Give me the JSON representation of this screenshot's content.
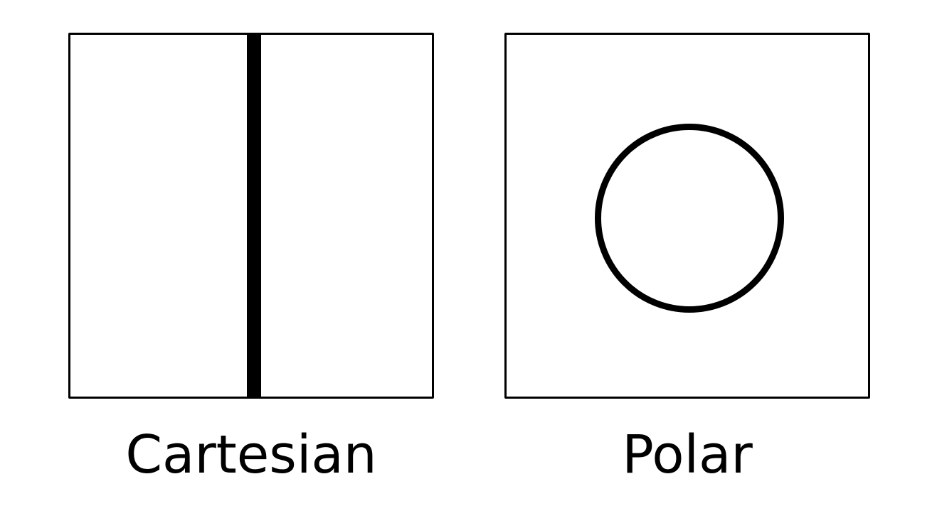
{
  "panels": {
    "cartesian": {
      "label": "Cartesian"
    },
    "polar": {
      "label": "Polar"
    }
  },
  "colors": {
    "stroke": "#000000",
    "background": "#ffffff"
  }
}
